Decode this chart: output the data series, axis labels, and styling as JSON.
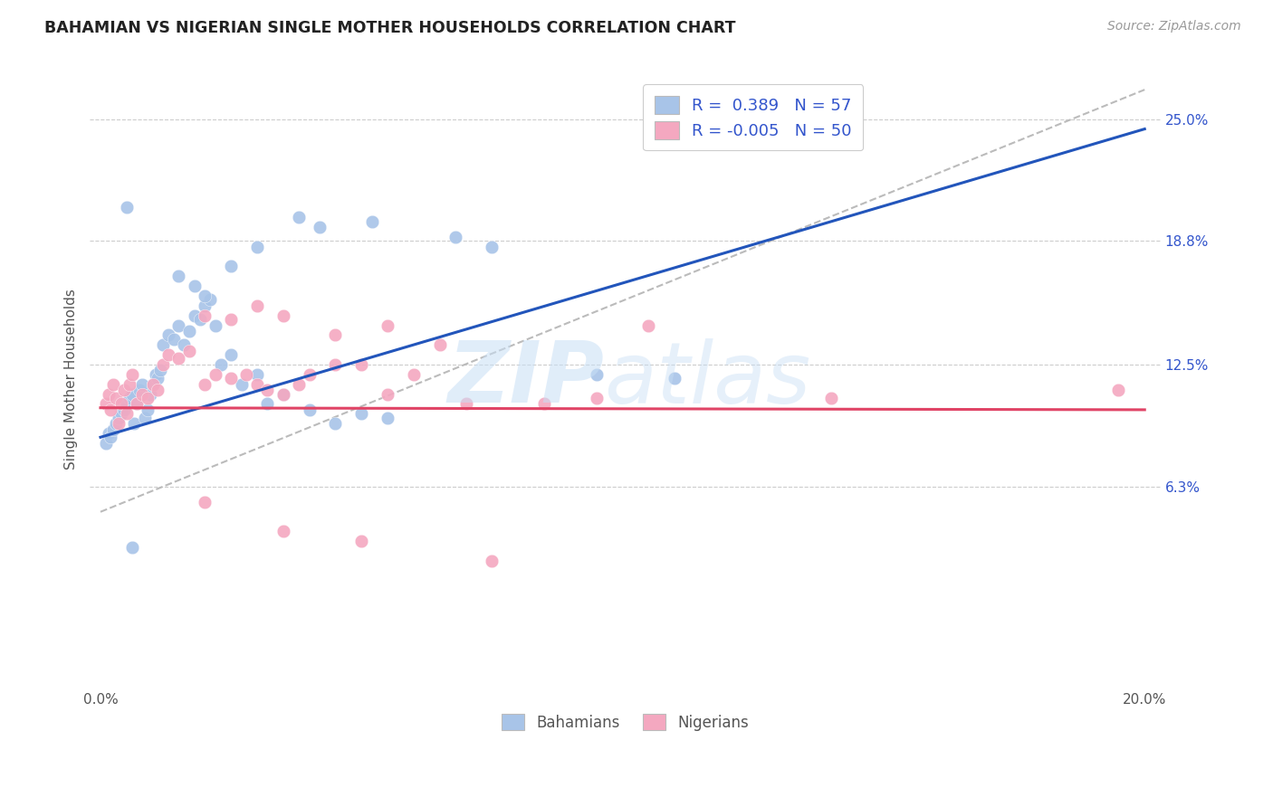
{
  "title": "BAHAMIAN VS NIGERIAN SINGLE MOTHER HOUSEHOLDS CORRELATION CHART",
  "source": "Source: ZipAtlas.com",
  "ylabel": "Single Mother Households",
  "ytick_labels": [
    "6.3%",
    "12.5%",
    "18.8%",
    "25.0%"
  ],
  "ytick_values": [
    6.3,
    12.5,
    18.8,
    25.0
  ],
  "xmin": 0.0,
  "xmax": 20.0,
  "ymin": -4.0,
  "ymax": 27.5,
  "bahamian_color": "#a8c4e8",
  "nigerian_color": "#f4a8c0",
  "bahamian_line_color": "#2255bb",
  "nigerian_line_color": "#e04466",
  "diag_line_color": "#bbbbbb",
  "legend_text_color": "#3355cc",
  "tick_color": "#3355cc",
  "r_bahamian": "0.389",
  "n_bahamian": "57",
  "r_nigerian": "-0.005",
  "n_nigerian": "50",
  "bah_line_x0": 0.0,
  "bah_line_y0": 8.8,
  "bah_line_x1": 20.0,
  "bah_line_y1": 24.5,
  "nig_line_x0": 0.0,
  "nig_line_y0": 10.3,
  "nig_line_x1": 20.0,
  "nig_line_y1": 10.2,
  "diag_x0": 0.0,
  "diag_y0": 5.0,
  "diag_x1": 20.0,
  "diag_y1": 26.5,
  "bahamian_x": [
    0.1,
    0.15,
    0.2,
    0.25,
    0.3,
    0.35,
    0.4,
    0.45,
    0.5,
    0.55,
    0.6,
    0.65,
    0.7,
    0.75,
    0.8,
    0.85,
    0.9,
    0.95,
    1.0,
    1.05,
    1.1,
    1.15,
    1.2,
    1.3,
    1.4,
    1.5,
    1.6,
    1.7,
    1.8,
    1.9,
    2.0,
    2.1,
    2.2,
    2.3,
    2.5,
    2.7,
    3.0,
    3.2,
    3.5,
    4.0,
    4.5,
    5.0,
    5.5,
    1.5,
    1.8,
    2.0,
    2.5,
    3.0,
    3.8,
    4.2,
    5.2,
    6.8,
    7.5,
    9.5,
    11.0,
    0.5,
    0.6
  ],
  "bahamian_y": [
    8.5,
    9.0,
    8.8,
    9.2,
    9.5,
    9.8,
    10.0,
    10.2,
    10.5,
    10.8,
    11.0,
    9.5,
    10.5,
    11.2,
    11.5,
    9.8,
    10.2,
    11.0,
    11.5,
    12.0,
    11.8,
    12.2,
    13.5,
    14.0,
    13.8,
    14.5,
    13.5,
    14.2,
    15.0,
    14.8,
    15.5,
    15.8,
    14.5,
    12.5,
    13.0,
    11.5,
    12.0,
    10.5,
    11.0,
    10.2,
    9.5,
    10.0,
    9.8,
    17.0,
    16.5,
    16.0,
    17.5,
    18.5,
    20.0,
    19.5,
    19.8,
    19.0,
    18.5,
    12.0,
    11.8,
    20.5,
    3.2
  ],
  "nigerian_x": [
    0.1,
    0.15,
    0.2,
    0.25,
    0.3,
    0.35,
    0.4,
    0.45,
    0.5,
    0.55,
    0.6,
    0.7,
    0.8,
    0.9,
    1.0,
    1.1,
    1.2,
    1.3,
    1.5,
    1.7,
    2.0,
    2.2,
    2.5,
    2.8,
    3.0,
    3.2,
    3.5,
    3.8,
    4.0,
    4.5,
    5.0,
    5.5,
    6.0,
    7.0,
    8.5,
    9.5,
    10.5,
    14.0,
    19.5,
    2.0,
    2.5,
    3.0,
    3.5,
    4.5,
    5.5,
    6.5,
    2.0,
    3.5,
    5.0,
    7.5
  ],
  "nigerian_y": [
    10.5,
    11.0,
    10.2,
    11.5,
    10.8,
    9.5,
    10.5,
    11.2,
    10.0,
    11.5,
    12.0,
    10.5,
    11.0,
    10.8,
    11.5,
    11.2,
    12.5,
    13.0,
    12.8,
    13.2,
    11.5,
    12.0,
    11.8,
    12.0,
    11.5,
    11.2,
    11.0,
    11.5,
    12.0,
    12.5,
    12.5,
    11.0,
    12.0,
    10.5,
    10.5,
    10.8,
    14.5,
    10.8,
    11.2,
    15.0,
    14.8,
    15.5,
    15.0,
    14.0,
    14.5,
    13.5,
    5.5,
    4.0,
    3.5,
    2.5
  ]
}
